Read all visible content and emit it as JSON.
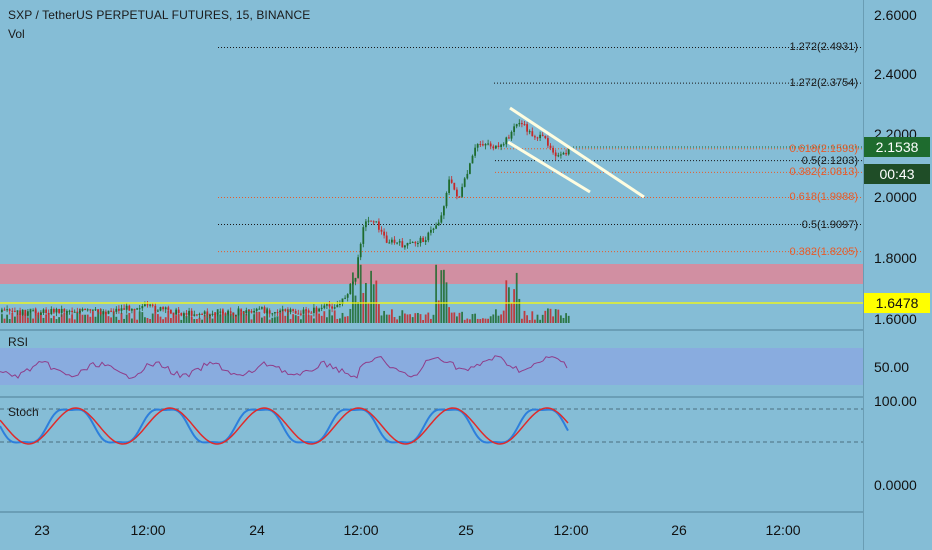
{
  "header": {
    "title": "SXP / TetherUS PERPETUAL FUTURES, 15, BINANCE",
    "volume_label": "Vol"
  },
  "panes": {
    "rsi_label": "RSI",
    "stoch_label": "Stoch"
  },
  "price_axis": {
    "labels": [
      "2.6000",
      "2.4000",
      "2.2000",
      "2.0000",
      "1.8000",
      "1.6000"
    ],
    "current_price": "2.1538",
    "countdown": "00:43",
    "marked_price": "1.6478"
  },
  "rsi_axis": {
    "labels": [
      "50.00"
    ]
  },
  "stoch_axis": {
    "labels": [
      "100.00",
      "0.0000"
    ]
  },
  "time_axis": {
    "labels": [
      "23",
      "12:00",
      "24",
      "12:00",
      "25",
      "12:00",
      "26",
      "12:00"
    ]
  },
  "fib_levels": [
    {
      "text": "1.272(2.4931)",
      "price": 2.4931,
      "tone": "dark"
    },
    {
      "text": "1.272(2.3754)",
      "price": 2.3754,
      "tone": "dark"
    },
    {
      "text": "0.618(2.1593)",
      "price": 2.1593,
      "tone": "orange"
    },
    {
      "text": "0.5(2.1203)",
      "price": 2.1203,
      "tone": "dark"
    },
    {
      "text": "0.382(2.0813)",
      "price": 2.0813,
      "tone": "orange"
    },
    {
      "text": "0.618(1.9988)",
      "price": 1.9988,
      "tone": "orange"
    },
    {
      "text": "0.5(1.9097)",
      "price": 1.9097,
      "tone": "dark"
    },
    {
      "text": "0.382(1.8205)",
      "price": 1.8205,
      "tone": "orange"
    }
  ],
  "colors": {
    "background": "#85bdd6",
    "support_zone": "#d98a9c",
    "marked_line": "#ffff00",
    "current_price_tag": "#1e6b2e",
    "countdown_tag": "#1f4d27",
    "channel": "#fffde0",
    "rsi_band": "#8aa9e0",
    "rsi_line": "#8e3d8a",
    "stoch_k": "#2d7fdc",
    "stoch_d": "#e02a2a",
    "candle_up": "#1e6b2e",
    "candle_down": "#c62828"
  }
}
